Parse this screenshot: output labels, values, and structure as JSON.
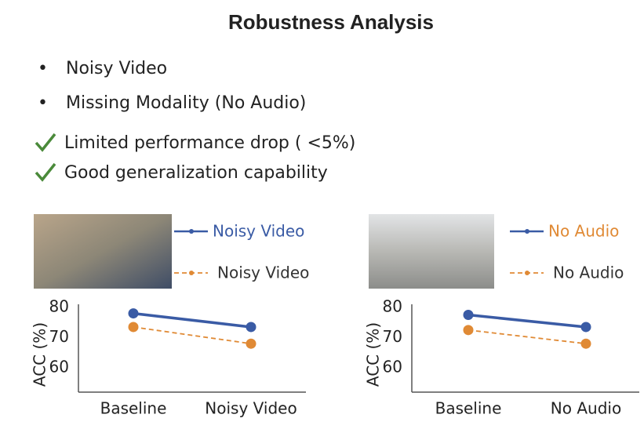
{
  "title": "Robustness Analysis",
  "bullets": [
    "Noisy Video",
    "Missing Modality (No Audio)"
  ],
  "checks": [
    "Limited performance drop ( <5%)",
    "Good generalization capability"
  ],
  "chart_data": [
    {
      "type": "line",
      "y_label": "ACC (%)",
      "categories": [
        "Baseline",
        "Noisy Video"
      ],
      "ylim": [
        52,
        81
      ],
      "yticks": [
        60,
        70,
        80
      ],
      "series": [
        {
          "name": "Noisy Video",
          "color": "#3a5ba5",
          "legend_text_color": "#3a5ba5",
          "dash": false,
          "values": [
            78,
            73.5
          ]
        },
        {
          "name": "Noisy Video",
          "color": "#e08a35",
          "legend_text_color": "#333333",
          "dash": true,
          "values": [
            73.5,
            68
          ]
        }
      ]
    },
    {
      "type": "line",
      "y_label": "ACC (%)",
      "categories": [
        "Baseline",
        "No Audio"
      ],
      "ylim": [
        52,
        81
      ],
      "yticks": [
        60,
        70,
        80
      ],
      "series": [
        {
          "name": "No Audio",
          "color": "#3a5ba5",
          "legend_text_color": "#e08a35",
          "dash": false,
          "values": [
            77.5,
            73.5
          ]
        },
        {
          "name": "No Audio",
          "color": "#e08a35",
          "legend_text_color": "#333333",
          "dash": true,
          "values": [
            72.5,
            68
          ]
        }
      ]
    }
  ]
}
